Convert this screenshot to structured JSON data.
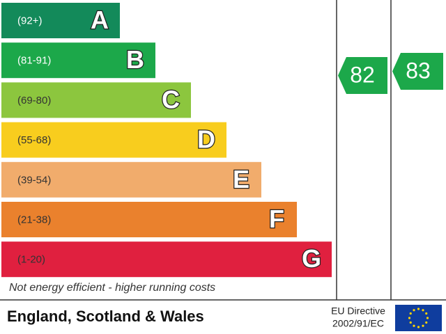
{
  "bands": [
    {
      "range": "(92+)",
      "letter": "A"
    },
    {
      "range": "(81-91)",
      "letter": "B"
    },
    {
      "range": "(69-80)",
      "letter": "C"
    },
    {
      "range": "(55-68)",
      "letter": "D"
    },
    {
      "range": "(39-54)",
      "letter": "E"
    },
    {
      "range": "(21-38)",
      "letter": "F"
    },
    {
      "range": "(1-20)",
      "letter": "G"
    }
  ],
  "bottom_note": "Not energy efficient - higher running costs",
  "current": "82",
  "potential": "83",
  "footer": {
    "region": "England, Scotland & Wales",
    "directive_line1": "EU Directive",
    "directive_line2": "2002/91/EC"
  }
}
